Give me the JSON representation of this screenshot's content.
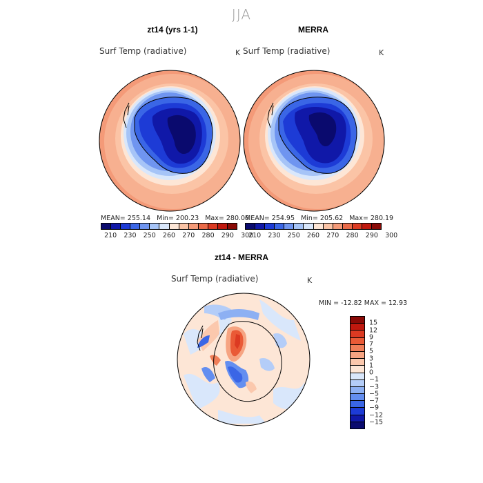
{
  "season": "JJA",
  "panels": {
    "left": {
      "title": "zt14 (yrs 1-1)",
      "variable": "Surf Temp (radiative)",
      "unit": "K",
      "stats": {
        "mean": "MEAN= 255.14",
        "min": "Min= 200.23",
        "max": "Max= 280.06"
      }
    },
    "right": {
      "title": "MERRA",
      "variable": "Surf Temp (radiative)",
      "unit": "K",
      "stats": {
        "mean": "MEAN= 254.95",
        "min": "Min= 205.62",
        "max": "Max= 280.19"
      }
    },
    "diff": {
      "title": "zt14 - MERRA",
      "variable": "Surf Temp (radiative)",
      "unit": "K",
      "minmax": "MIN = -12.82 MAX =  12.93"
    }
  },
  "colorbar_abs": {
    "ticks": [
      "210",
      "230",
      "250",
      "260",
      "270",
      "280",
      "290",
      "300"
    ],
    "colors": [
      "#0a0a6e",
      "#1018a8",
      "#1d3bd6",
      "#3a66e6",
      "#6f95f0",
      "#a6c4f7",
      "#d9e7fb",
      "#fde6d6",
      "#fbc4a6",
      "#f49a78",
      "#ea6a48",
      "#dc3a22",
      "#c0180e",
      "#8a0a06"
    ]
  },
  "colorbar_diff": {
    "ticks": [
      "15",
      "12",
      "9",
      "7",
      "5",
      "3",
      "1",
      "0",
      "−1",
      "−3",
      "−5",
      "−7",
      "−9",
      "−12",
      "−15"
    ],
    "colors": [
      "#8a0a06",
      "#c0180e",
      "#dc3a22",
      "#ea5a36",
      "#f07e58",
      "#f6a482",
      "#fbc8ad",
      "#fde6d6",
      "#d9e7fb",
      "#b4cdf8",
      "#8db0f3",
      "#638ef0",
      "#3a66e6",
      "#1d3bd6",
      "#1018a8",
      "#0a0a6e"
    ]
  }
}
